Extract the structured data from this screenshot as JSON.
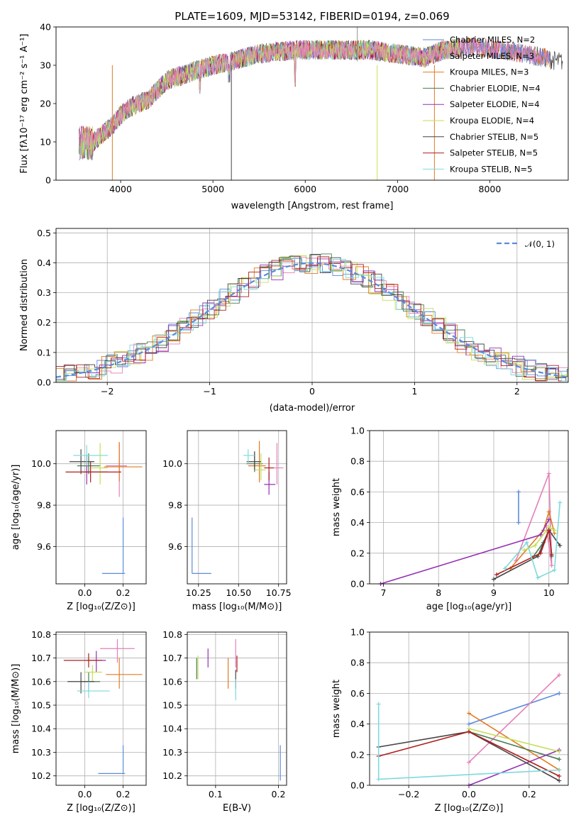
{
  "title": "PLATE=1609, MJD=53142, FIBERID=0194, z=0.069",
  "colors": [
    "#5b8bdc",
    "#e57fb8",
    "#e07b22",
    "#4a7a52",
    "#9430b5",
    "#c3df53",
    "#444444",
    "#b01e1e",
    "#7fd9dd"
  ],
  "chart_data": [
    {
      "id": "spectrum",
      "type": "line",
      "xlabel": "wavelength [Angstrom, rest frame]",
      "ylabel": "Flux [fλ10⁻¹⁷ erg cm⁻² s⁻¹ A⁻¹]",
      "xlim": [
        3300,
        8850
      ],
      "ylim": [
        0,
        40
      ],
      "xticks": [
        "4000",
        "5000",
        "6000",
        "7000",
        "8000"
      ],
      "yticks": [
        "0",
        "10",
        "20",
        "30",
        "40"
      ],
      "legend_placement": "right",
      "series": [
        {
          "name": "Chabrier MILES, N_SSP=2"
        },
        {
          "name": "Salpeter MILES, N_SSP=3"
        },
        {
          "name": "Kroupa MILES, N_SSP=3"
        },
        {
          "name": "Chabrier ELODIE, N_SSP=4"
        },
        {
          "name": "Salpeter ELODIE, N_SSP=4"
        },
        {
          "name": "Kroupa ELODIE, N_SSP=4"
        },
        {
          "name": "Chabrier STELIB, N_SSP=5"
        },
        {
          "name": "Salpeter STELIB, N_SSP=5"
        },
        {
          "name": "Kroupa STELIB, N_SSP=5"
        }
      ],
      "continuum": {
        "x": [
          3550,
          3700,
          3900,
          4000,
          4100,
          4300,
          4500,
          4800,
          5000,
          5200,
          5500,
          5900,
          6200,
          6500,
          6700,
          7000,
          7300,
          7500,
          7800,
          8100,
          8400,
          8750
        ],
        "y": [
          7,
          10,
          14,
          17,
          19,
          21,
          26,
          28.5,
          30,
          31,
          33,
          34,
          34,
          34,
          34,
          33,
          32,
          34,
          35,
          34,
          33,
          31
        ]
      }
    },
    {
      "id": "residuals",
      "type": "area",
      "xlabel": "(data-model)/error",
      "ylabel": "Normed distribution",
      "xlim": [
        -2.5,
        2.5
      ],
      "ylim": [
        0,
        0.515
      ],
      "xticks": [
        "−2",
        "−1",
        "0",
        "1",
        "2"
      ],
      "yticks": [
        "0.0",
        "0.1",
        "0.2",
        "0.3",
        "0.4",
        "0.5"
      ],
      "legend": "𝒩(0, 1)",
      "legend_placement": "top-right"
    },
    {
      "id": "age_vs_Z",
      "type": "scatter",
      "xlabel": "Z [log₁₀(Z/Z⊙)]",
      "ylabel": "age  [log₁₀(age/yr)]",
      "xlim": [
        -0.15,
        0.32
      ],
      "ylim": [
        9.42,
        10.16
      ],
      "xticks": [
        "0.0",
        "0.2"
      ],
      "xtickvals": [
        0,
        0.2
      ],
      "yticks": [
        "9.6",
        "9.8",
        "10.0"
      ],
      "ytickvals": [
        9.6,
        9.8,
        10.0
      ],
      "points": [
        {
          "x": 0.2,
          "y": 9.47,
          "xerr": [
            0.11,
            0.01
          ],
          "yerr": [
            0,
            0.27
          ],
          "c": 0
        },
        {
          "x": 0.18,
          "y": 9.99,
          "xerr": [
            0.07,
            0.04
          ],
          "yerr": [
            0.15,
            0.11
          ],
          "c": 1
        },
        {
          "x": 0.18,
          "y": 9.985,
          "xerr": [
            0.08,
            0.12
          ],
          "yerr": [
            0.07,
            0.12
          ],
          "c": 2
        },
        {
          "x": 0.02,
          "y": 9.99,
          "xerr": [
            0.06,
            0.06
          ],
          "yerr": [
            0.04,
            0.06
          ],
          "c": 3
        },
        {
          "x": 0.01,
          "y": 9.96,
          "xerr": [
            0.03,
            0.11
          ],
          "yerr": [
            0.06,
            0.08
          ],
          "c": 4
        },
        {
          "x": 0.08,
          "y": 9.98,
          "xerr": [
            0.05,
            0.04
          ],
          "yerr": [
            0.08,
            0.12
          ],
          "c": 5
        },
        {
          "x": -0.02,
          "y": 10.01,
          "xerr": [
            0.06,
            0.07
          ],
          "yerr": [
            0.06,
            0.06
          ],
          "c": 6
        },
        {
          "x": 0.03,
          "y": 9.96,
          "xerr": [
            0.13,
            0.16
          ],
          "yerr": [
            0.05,
            0.05
          ],
          "c": 7
        },
        {
          "x": 0.01,
          "y": 10.04,
          "xerr": [
            0.07,
            0.11
          ],
          "yerr": [
            0.05,
            0.05
          ],
          "c": 8
        }
      ]
    },
    {
      "id": "age_vs_mass",
      "type": "scatter",
      "xlabel": "mass [log₁₀(M/M⊙)]",
      "xlim": [
        10.18,
        10.8
      ],
      "ylim": [
        9.42,
        10.16
      ],
      "xticks": [
        "10.25",
        "10.50",
        "10.75"
      ],
      "xtickvals": [
        10.25,
        10.5,
        10.75
      ],
      "yticks": [
        "9.6",
        "9.8",
        "10.0"
      ],
      "ytickvals": [
        9.6,
        9.8,
        10.0
      ],
      "points": [
        {
          "x": 10.21,
          "y": 9.47,
          "xerr": [
            0,
            0.12
          ],
          "yerr": [
            0,
            0.27
          ],
          "c": 0
        },
        {
          "x": 10.74,
          "y": 9.98,
          "xerr": [
            0.06,
            0.04
          ],
          "yerr": [
            0.08,
            0.12
          ],
          "c": 1
        },
        {
          "x": 10.63,
          "y": 9.99,
          "xerr": [
            0.07,
            0.04
          ],
          "yerr": [
            0.08,
            0.12
          ],
          "c": 2
        },
        {
          "x": 10.6,
          "y": 10.0,
          "xerr": [
            0.05,
            0.05
          ],
          "yerr": [
            0.04,
            0.05
          ],
          "c": 3
        },
        {
          "x": 10.69,
          "y": 9.9,
          "xerr": [
            0.03,
            0.04
          ],
          "yerr": [
            0.05,
            0.06
          ],
          "c": 4
        },
        {
          "x": 10.64,
          "y": 9.97,
          "xerr": [
            0.04,
            0.03
          ],
          "yerr": [
            0.05,
            0.08
          ],
          "c": 5
        },
        {
          "x": 10.6,
          "y": 10.01,
          "xerr": [
            0.05,
            0.04
          ],
          "yerr": [
            0.04,
            0.05
          ],
          "c": 6
        },
        {
          "x": 10.69,
          "y": 9.98,
          "xerr": [
            0.03,
            0.03
          ],
          "yerr": [
            0.06,
            0.05
          ],
          "c": 7
        },
        {
          "x": 10.56,
          "y": 10.04,
          "xerr": [
            0.03,
            0.04
          ],
          "yerr": [
            0.04,
            0.03
          ],
          "c": 8
        }
      ]
    },
    {
      "id": "weight_vs_age",
      "type": "line",
      "xlabel": "age  [log₁₀(age/yr)]",
      "ylabel": "mass weight",
      "xlim": [
        6.75,
        10.35
      ],
      "ylim": [
        0,
        1.0
      ],
      "xticks": [
        "7",
        "8",
        "9",
        "10"
      ],
      "xtickvals": [
        7,
        8,
        9,
        10
      ],
      "yticks": [
        "0.0",
        "0.2",
        "0.4",
        "0.6",
        "0.8",
        "1.0"
      ],
      "ytickvals": [
        0,
        0.2,
        0.4,
        0.6,
        0.8,
        1.0
      ],
      "series": [
        {
          "c": 0,
          "x": [
            9.45,
            9.45
          ],
          "y": [
            0.4,
            0.6
          ]
        },
        {
          "c": 1,
          "x": [
            9.4,
            10.0,
            10.05,
            9.95
          ],
          "y": [
            0.15,
            0.72,
            0.12,
            0.38
          ]
        },
        {
          "c": 2,
          "x": [
            9.3,
            9.9,
            10.0,
            10.1
          ],
          "y": [
            0.1,
            0.35,
            0.47,
            0.33
          ]
        },
        {
          "c": 3,
          "x": [
            9.7,
            9.9,
            10.0,
            10.05
          ],
          "y": [
            0.17,
            0.27,
            0.35,
            0.18
          ]
        },
        {
          "c": 4,
          "x": [
            6.95,
            9.85,
            10.0
          ],
          "y": [
            0.0,
            0.32,
            0.42
          ]
        },
        {
          "c": 5,
          "x": [
            9.55,
            9.75,
            10.0,
            10.1
          ],
          "y": [
            0.22,
            0.25,
            0.37,
            0.35
          ]
        },
        {
          "c": 6,
          "x": [
            9.0,
            9.8,
            10.0,
            10.2
          ],
          "y": [
            0.03,
            0.18,
            0.35,
            0.25
          ]
        },
        {
          "c": 7,
          "x": [
            9.05,
            9.85,
            10.0,
            10.05
          ],
          "y": [
            0.06,
            0.2,
            0.35,
            0.19
          ]
        },
        {
          "c": 8,
          "x": [
            9.2,
            9.6,
            9.8,
            10.1,
            10.2
          ],
          "y": [
            0.1,
            0.27,
            0.04,
            0.09,
            0.53
          ]
        }
      ]
    },
    {
      "id": "mass_vs_Z",
      "type": "scatter",
      "xlabel": "Z [log₁₀(Z/Z⊙)]",
      "ylabel": "mass [log₁₀(M/M⊙)]",
      "xlim": [
        -0.15,
        0.32
      ],
      "ylim": [
        10.16,
        10.81
      ],
      "xticks": [
        "0.0",
        "0.2"
      ],
      "xtickvals": [
        0,
        0.2
      ],
      "yticks": [
        "10.2",
        "10.3",
        "10.4",
        "10.5",
        "10.6",
        "10.7",
        "10.8"
      ],
      "ytickvals": [
        10.2,
        10.3,
        10.4,
        10.5,
        10.6,
        10.7,
        10.8
      ],
      "points": [
        {
          "x": 0.2,
          "y": 10.21,
          "xerr": [
            0.13,
            0.01
          ],
          "yerr": [
            0.0,
            0.12
          ],
          "c": 0
        },
        {
          "x": 0.17,
          "y": 10.74,
          "xerr": [
            0.09,
            0.09
          ],
          "yerr": [
            0.06,
            0.04
          ],
          "c": 1
        },
        {
          "x": 0.18,
          "y": 10.63,
          "xerr": [
            0.07,
            0.12
          ],
          "yerr": [
            0.06,
            0.07
          ],
          "c": 2
        },
        {
          "x": 0.02,
          "y": 10.6,
          "xerr": [
            0.04,
            0.06
          ],
          "yerr": [
            0.04,
            0.04
          ],
          "c": 3
        },
        {
          "x": 0.06,
          "y": 10.69,
          "xerr": [
            0.05,
            0.05
          ],
          "yerr": [
            0.05,
            0.04
          ],
          "c": 4
        },
        {
          "x": 0.04,
          "y": 10.64,
          "xerr": [
            0.04,
            0.05
          ],
          "yerr": [
            0.04,
            0.03
          ],
          "c": 5
        },
        {
          "x": -0.02,
          "y": 10.6,
          "xerr": [
            0.07,
            0.07
          ],
          "yerr": [
            0.05,
            0.04
          ],
          "c": 6
        },
        {
          "x": 0.02,
          "y": 10.69,
          "xerr": [
            0.13,
            0.07
          ],
          "yerr": [
            0.03,
            0.03
          ],
          "c": 7
        },
        {
          "x": 0.02,
          "y": 10.56,
          "xerr": [
            0.06,
            0.11
          ],
          "yerr": [
            0.03,
            0.04
          ],
          "c": 8
        }
      ]
    },
    {
      "id": "mass_vs_EBV",
      "type": "scatter",
      "xlabel": "E(B-V)",
      "xlim": [
        0.055,
        0.213
      ],
      "ylim": [
        10.16,
        10.81
      ],
      "xticks": [
        "0.1",
        "0.2"
      ],
      "xtickvals": [
        0.1,
        0.2
      ],
      "yticks": [
        "10.2",
        "10.3",
        "10.4",
        "10.5",
        "10.6",
        "10.7",
        "10.8"
      ],
      "ytickvals": [
        10.2,
        10.3,
        10.4,
        10.5,
        10.6,
        10.7,
        10.8
      ],
      "points": [
        {
          "x": 0.203,
          "y": 10.21,
          "xerr": [
            0,
            0
          ],
          "yerr": [
            0.03,
            0.12
          ],
          "c": 0
        },
        {
          "x": 0.132,
          "y": 10.73,
          "xerr": [
            0,
            0
          ],
          "yerr": [
            0.07,
            0.05
          ],
          "c": 1
        },
        {
          "x": 0.12,
          "y": 10.63,
          "xerr": [
            0,
            0
          ],
          "yerr": [
            0.06,
            0.07
          ],
          "c": 2
        },
        {
          "x": 0.07,
          "y": 10.66,
          "xerr": [
            0,
            0
          ],
          "yerr": [
            0.05,
            0.04
          ],
          "c": 3
        },
        {
          "x": 0.088,
          "y": 10.7,
          "xerr": [
            0,
            0
          ],
          "yerr": [
            0.04,
            0.04
          ],
          "c": 4
        },
        {
          "x": 0.072,
          "y": 10.65,
          "xerr": [
            0,
            0
          ],
          "yerr": [
            0.04,
            0.06
          ],
          "c": 5
        },
        {
          "x": 0.132,
          "y": 10.62,
          "xerr": [
            0,
            0
          ],
          "yerr": [
            0.05,
            0.03
          ],
          "c": 6
        },
        {
          "x": 0.134,
          "y": 10.68,
          "xerr": [
            0,
            0
          ],
          "yerr": [
            0.04,
            0.03
          ],
          "c": 7
        },
        {
          "x": 0.132,
          "y": 10.57,
          "xerr": [
            0,
            0
          ],
          "yerr": [
            0.05,
            0.04
          ],
          "c": 8
        }
      ]
    },
    {
      "id": "weight_vs_Z",
      "type": "line",
      "xlabel": "Z [log₁₀(Z/Z⊙)]",
      "ylabel": "mass weight",
      "xlim": [
        -0.33,
        0.33
      ],
      "ylim": [
        0,
        1.0
      ],
      "xticks": [
        "−0.2",
        "0.0",
        "0.2"
      ],
      "xtickvals": [
        -0.2,
        0,
        0.2
      ],
      "yticks": [
        "0.0",
        "0.2",
        "0.4",
        "0.6",
        "0.8",
        "1.0"
      ],
      "ytickvals": [
        0,
        0.2,
        0.4,
        0.6,
        0.8,
        1.0
      ],
      "series": [
        {
          "c": 0,
          "x": [
            0.0,
            0.3
          ],
          "y": [
            0.4,
            0.6
          ]
        },
        {
          "c": 1,
          "x": [
            0.0,
            0.3
          ],
          "y": [
            0.15,
            0.72
          ]
        },
        {
          "c": 2,
          "x": [
            0.0,
            0.3
          ],
          "y": [
            0.47,
            0.1
          ]
        },
        {
          "c": 3,
          "x": [
            0.0,
            0.3
          ],
          "y": [
            0.35,
            0.17
          ]
        },
        {
          "c": 4,
          "x": [
            0.0,
            0.3
          ],
          "y": [
            0.0,
            0.23
          ]
        },
        {
          "c": 5,
          "x": [
            0.0,
            0.3
          ],
          "y": [
            0.37,
            0.22
          ]
        },
        {
          "c": 6,
          "x": [
            -0.3,
            0.0,
            0.3
          ],
          "y": [
            0.25,
            0.35,
            0.03
          ]
        },
        {
          "c": 7,
          "x": [
            -0.3,
            0.0,
            0.3
          ],
          "y": [
            0.19,
            0.35,
            0.06
          ]
        },
        {
          "c": 8,
          "x": [
            -0.3,
            -0.3,
            0.3
          ],
          "y": [
            0.53,
            0.04,
            0.1
          ]
        }
      ]
    }
  ]
}
